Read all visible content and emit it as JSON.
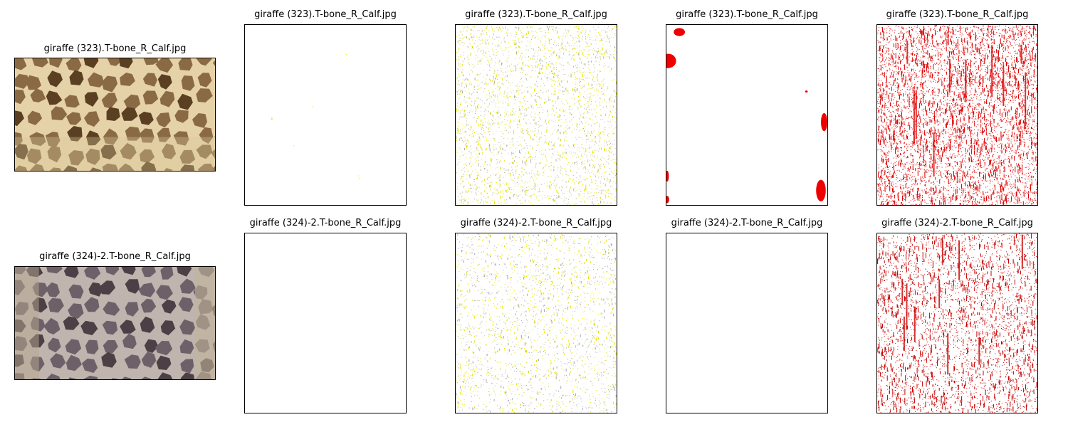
{
  "figure": {
    "rows": [
      {
        "panels": [
          {
            "title": "giraffe (323).T-bone_R_Calf.jpg",
            "kind": "photo",
            "palette": "tan"
          },
          {
            "title": "giraffe (323).T-bone_R_Calf.jpg",
            "kind": "specks",
            "color": "#e8d800",
            "density": 0.0004
          },
          {
            "title": "giraffe (323).T-bone_R_Calf.jpg",
            "kind": "specks",
            "color": "#e6e000",
            "density": 0.22,
            "secondary": "#b0b0a0"
          },
          {
            "title": "giraffe (323).T-bone_R_Calf.jpg",
            "kind": "blobs",
            "color": "#ee0000"
          },
          {
            "title": "giraffe (323).T-bone_R_Calf.jpg",
            "kind": "specks",
            "color": "#dd0000",
            "density": 0.38,
            "streaks": true
          }
        ]
      },
      {
        "panels": [
          {
            "title": "giraffe (324)-2.T-bone_R_Calf.jpg",
            "kind": "photo",
            "palette": "grey"
          },
          {
            "title": "giraffe (324)-2.T-bone_R_Calf.jpg",
            "kind": "empty"
          },
          {
            "title": "giraffe (324)-2.T-bone_R_Calf.jpg",
            "kind": "specks",
            "color": "#e6e000",
            "density": 0.16,
            "secondary": "#a0a0b0"
          },
          {
            "title": "giraffe (324)-2.T-bone_R_Calf.jpg",
            "kind": "empty"
          },
          {
            "title": "giraffe (324)-2.T-bone_R_Calf.jpg",
            "kind": "specks",
            "color": "#c80000",
            "density": 0.26,
            "streaks": true
          }
        ]
      }
    ]
  }
}
